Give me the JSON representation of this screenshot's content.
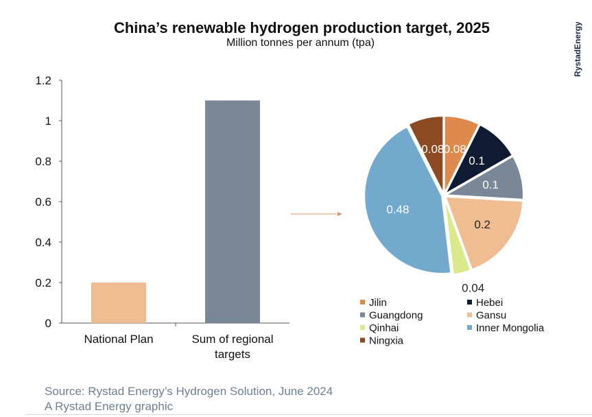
{
  "title": "China’s renewable hydrogen production target, 2025",
  "subtitle": "Million tonnes per annum (tpa)",
  "brand": "RystadEnergy",
  "source_line1": "Source: Rystad Energy’s Hydrogen Solution, June 2024",
  "source_line2": "A Rystad Energy graphic",
  "chart_data": [
    {
      "type": "bar",
      "categories": [
        "National Plan",
        "Sum of regional targets"
      ],
      "category_label_lines": [
        [
          "National Plan"
        ],
        [
          "Sum of regional",
          "targets"
        ]
      ],
      "values": [
        0.2,
        1.1
      ],
      "colors": [
        "#f0bd92",
        "#7a8796"
      ],
      "ylim": [
        0,
        1.2
      ],
      "yticks": [
        0,
        0.2,
        0.4,
        0.6,
        0.8,
        1,
        1.2
      ],
      "ytick_labels": [
        "0",
        "0.2",
        "0.4",
        "0.6",
        "0.8",
        "1",
        "1.2"
      ],
      "grid": false
    },
    {
      "type": "pie",
      "labels": [
        "Jilin",
        "Hebei",
        "Guangdong",
        "Gansu",
        "Qinhai",
        "Inner Mongolia",
        "Ningxia"
      ],
      "values": [
        0.08,
        0.1,
        0.1,
        0.2,
        0.04,
        0.48,
        0.08
      ],
      "value_labels": [
        "0.08",
        "0.1",
        "0.1",
        "0.2",
        "0.04",
        "0.48",
        "0.08"
      ],
      "colors": [
        "#de8a4c",
        "#0f1b33",
        "#7a8796",
        "#f0bd92",
        "#dbe98c",
        "#72a9cd",
        "#8c4a22"
      ],
      "label_colors": [
        "#ffffff",
        "#ffffff",
        "#ffffff",
        "#222222",
        "#222222",
        "#ffffff",
        "#ffffff"
      ],
      "legend_placement": "bottom"
    }
  ]
}
